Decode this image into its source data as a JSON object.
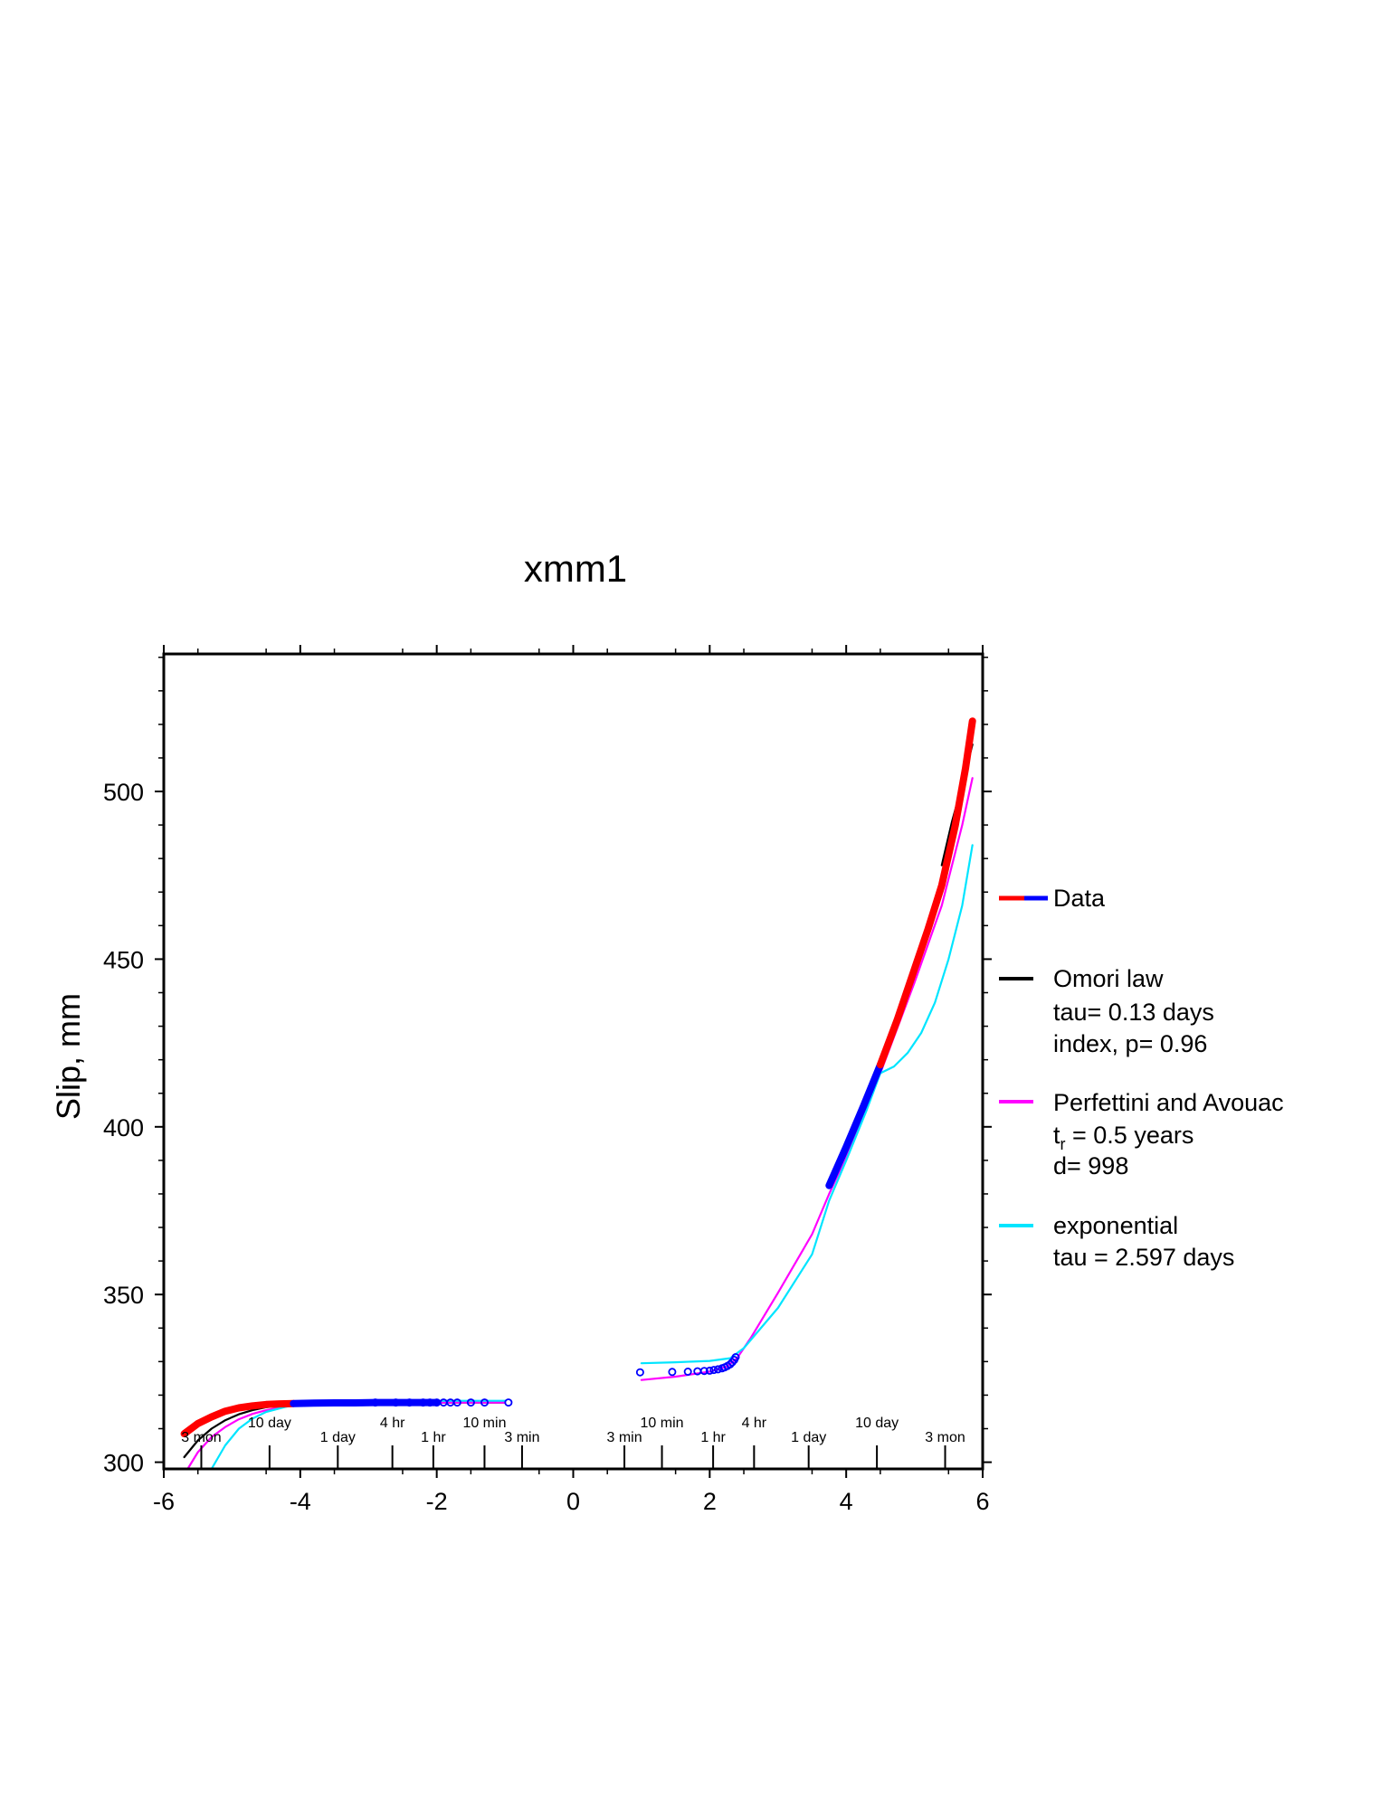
{
  "chart_data": {
    "type": "line",
    "title": "xmm1",
    "xlabel": "",
    "ylabel": "Slip, mm",
    "xlim": [
      -6,
      6
    ],
    "ylim": [
      298,
      541
    ],
    "x_ticks": [
      -6,
      -4,
      -2,
      0,
      2,
      4,
      6
    ],
    "y_ticks": [
      300,
      350,
      400,
      450,
      500
    ],
    "grid": false,
    "legend_position": "right",
    "legend": [
      {
        "name": "Data",
        "color": "#ff0000",
        "color2": "#0000ff",
        "lines": []
      },
      {
        "name": "Omori law",
        "color": "#000000",
        "lines": [
          "tau= 0.13 days",
          "index, p= 0.96"
        ]
      },
      {
        "name": "Perfettini and Avouac",
        "color": "#ff00ff",
        "lines": [],
        "tr_main": "t",
        "tr_sub": "r",
        "tr_rest": " = 0.5 years",
        "extra": "d= 998"
      },
      {
        "name": "exponential",
        "color": "#00e5ff",
        "lines": [
          "tau = 2.597 days"
        ]
      }
    ],
    "time_labels": [
      {
        "label": "3 mon",
        "x": -5.45,
        "row": 2
      },
      {
        "label": "10 day",
        "x": -4.45,
        "row": 1
      },
      {
        "label": "1 day",
        "x": -3.45,
        "row": 2
      },
      {
        "label": "4 hr",
        "x": -2.65,
        "row": 1
      },
      {
        "label": "1 hr",
        "x": -2.05,
        "row": 2
      },
      {
        "label": "10 min",
        "x": -1.3,
        "row": 1
      },
      {
        "label": "3 min",
        "x": -0.75,
        "row": 2
      },
      {
        "label": "3 min",
        "x": 0.75,
        "row": 2
      },
      {
        "label": "10 min",
        "x": 1.3,
        "row": 1
      },
      {
        "label": "1 hr",
        "x": 2.05,
        "row": 2
      },
      {
        "label": "4 hr",
        "x": 2.65,
        "row": 1
      },
      {
        "label": "1 day",
        "x": 3.45,
        "row": 2
      },
      {
        "label": "10 day",
        "x": 4.45,
        "row": 1
      },
      {
        "label": "3 mon",
        "x": 5.45,
        "row": 2
      }
    ],
    "time_ticks": [
      -5.45,
      -4.45,
      -3.45,
      -2.65,
      -2.05,
      -1.3,
      -0.75,
      0.75,
      1.3,
      2.05,
      2.65,
      3.45,
      4.45,
      5.45
    ],
    "series": [
      {
        "name": "Data",
        "kind": "thick",
        "color": "#ff0000",
        "x": [
          -5.7,
          -5.5,
          -5.3,
          -5.1,
          -4.9,
          -4.7,
          -4.5,
          -4.3,
          -4.1
        ],
        "y": [
          308.5,
          311.5,
          313.5,
          315.2,
          316.2,
          316.8,
          317.2,
          317.4,
          317.5
        ]
      },
      {
        "name": "Data",
        "kind": "thick",
        "color": "#0000ff",
        "x": [
          -4.1,
          -3.8,
          -3.5,
          -3.2,
          -2.9,
          -2.6,
          -2.3,
          -2.0
        ],
        "y": [
          317.5,
          317.6,
          317.7,
          317.7,
          317.8,
          317.8,
          317.8,
          317.8
        ]
      },
      {
        "name": "Data",
        "kind": "circles",
        "color": "#0000ff",
        "x": [
          -2.9,
          -2.6,
          -2.4,
          -2.2,
          -2.1,
          -2.0,
          -1.9,
          -1.8,
          -1.7,
          -1.5,
          -1.3,
          -0.95
        ],
        "y": [
          317.8,
          317.8,
          317.8,
          317.8,
          317.8,
          317.8,
          317.8,
          317.8,
          317.8,
          317.8,
          317.8,
          317.8
        ]
      },
      {
        "name": "Data",
        "kind": "circles",
        "color": "#0000ff",
        "x": [
          0.98,
          1.45,
          1.68,
          1.82,
          1.92,
          2.0,
          2.06,
          2.12,
          2.18,
          2.22,
          2.26,
          2.3,
          2.33,
          2.36,
          2.38
        ],
        "y": [
          326.8,
          326.9,
          327.0,
          327.1,
          327.2,
          327.3,
          327.5,
          327.7,
          328.0,
          328.3,
          328.7,
          329.2,
          329.8,
          330.5,
          331.3
        ]
      },
      {
        "name": "Data",
        "kind": "thick",
        "color": "#0000ff",
        "x": [
          3.75,
          4.0,
          4.25,
          4.5
        ],
        "y": [
          382.5,
          394.0,
          406.0,
          418.5
        ]
      },
      {
        "name": "Data",
        "kind": "thick",
        "color": "#ff0000",
        "x": [
          4.5,
          4.75,
          5.0,
          5.2,
          5.4,
          5.6,
          5.75,
          5.85
        ],
        "y": [
          418.5,
          432.0,
          447.0,
          459.0,
          472.0,
          490.0,
          507.0,
          521.0
        ]
      },
      {
        "name": "Omori law",
        "kind": "line",
        "color": "#000000",
        "x": [
          -5.7,
          -5.5,
          -5.3,
          -5.1,
          -4.9,
          -4.7,
          -4.5,
          -4.2,
          -3.8,
          -3.0,
          -2.0,
          -1.0
        ],
        "y": [
          301.5,
          306.5,
          310.0,
          312.5,
          314.3,
          315.5,
          316.4,
          317.1,
          317.5,
          317.7,
          317.8,
          317.8
        ]
      },
      {
        "name": "Omori law",
        "kind": "line",
        "color": "#000000",
        "x": [
          5.4,
          5.55,
          5.7,
          5.85
        ],
        "y": [
          478.0,
          491.0,
          502.0,
          514.0
        ]
      },
      {
        "name": "Perfettini and Avouac",
        "kind": "line",
        "color": "#ff00ff",
        "x": [
          -5.65,
          -5.5,
          -5.3,
          -5.1,
          -4.9,
          -4.7,
          -4.5,
          -4.2,
          -3.8,
          -3.0,
          -2.0,
          -1.0
        ],
        "y": [
          298.0,
          303.0,
          307.5,
          310.5,
          312.8,
          314.4,
          315.5,
          316.6,
          317.3,
          317.7,
          317.8,
          317.8
        ]
      },
      {
        "name": "Perfettini and Avouac",
        "kind": "line",
        "color": "#ff00ff",
        "x": [
          1.0,
          1.5,
          2.0,
          2.25,
          2.4,
          2.6,
          3.0,
          3.5,
          3.75,
          4.0,
          4.5,
          5.0,
          5.4,
          5.7,
          5.85
        ],
        "y": [
          324.5,
          325.5,
          327.0,
          328.5,
          331.0,
          337.0,
          350.5,
          368.0,
          380.0,
          391.0,
          416.0,
          443.0,
          466.0,
          490.0,
          504.0
        ]
      },
      {
        "name": "exponential",
        "kind": "line",
        "color": "#00e5ff",
        "x": [
          -5.3,
          -5.1,
          -4.9,
          -4.7,
          -4.5,
          -4.2,
          -3.8,
          -3.0,
          -2.0,
          -1.0
        ],
        "y": [
          298.0,
          305.0,
          310.0,
          313.0,
          315.0,
          316.6,
          317.5,
          318.1,
          318.3,
          318.3
        ]
      },
      {
        "name": "exponential",
        "kind": "line",
        "color": "#00e5ff",
        "x": [
          1.0,
          1.5,
          2.0,
          2.3,
          2.5,
          3.0,
          3.5,
          3.75,
          4.0,
          4.3,
          4.5,
          4.7,
          4.9,
          5.1,
          5.3,
          5.5,
          5.7,
          5.85
        ],
        "y": [
          329.5,
          329.8,
          330.2,
          331.0,
          334.0,
          346.0,
          362.0,
          378.0,
          390.0,
          405.0,
          416.0,
          418.0,
          422.0,
          428.0,
          437.0,
          450.0,
          466.0,
          484.0
        ]
      }
    ]
  }
}
